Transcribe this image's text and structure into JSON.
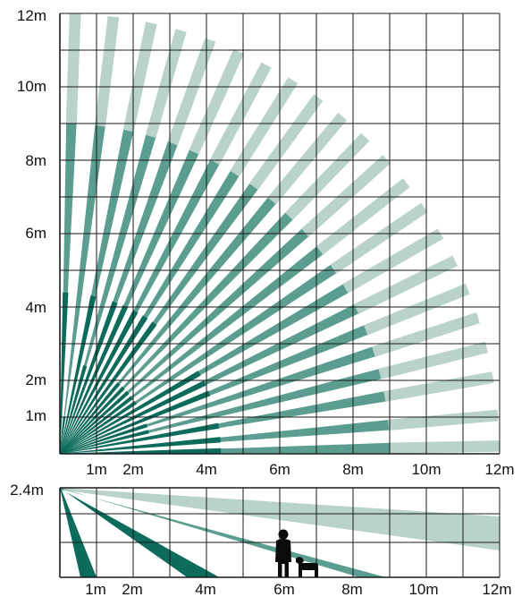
{
  "top_view": {
    "y_tick_labels": [
      "1m",
      "2m",
      "4m",
      "6m",
      "8m",
      "10m",
      "12m"
    ],
    "x_tick_labels": [
      "1m",
      "2m",
      "4m",
      "6m",
      "8m",
      "10m",
      "12m"
    ],
    "grid_step_m": 1,
    "range_m": 12,
    "beams": [
      {
        "angle_deg": 1,
        "near_m": 4.4,
        "mid_m": 9.0,
        "far_m": 12.0
      },
      {
        "angle_deg": 5,
        "near_m": 4.4,
        "mid_m": 9.0,
        "far_m": 12.0
      },
      {
        "angle_deg": 10,
        "near_m": 4.4,
        "mid_m": 9.0,
        "far_m": 12.0
      },
      {
        "angle_deg": 14,
        "near_m": 2.5,
        "mid_m": 9.0,
        "far_m": 12.0
      },
      {
        "angle_deg": 18,
        "near_m": 2.5,
        "mid_m": 9.0,
        "far_m": 12.0
      },
      {
        "angle_deg": 22,
        "near_m": 4.4,
        "mid_m": 9.0,
        "far_m": 12.0
      },
      {
        "angle_deg": 26,
        "near_m": 4.4,
        "mid_m": 9.0,
        "far_m": 12.0
      },
      {
        "angle_deg": 30,
        "near_m": 4.4,
        "mid_m": 9.0,
        "far_m": 12.0
      },
      {
        "angle_deg": 34,
        "near_m": 2.5,
        "mid_m": 9.0,
        "far_m": 12.0
      },
      {
        "angle_deg": 38,
        "near_m": 2.5,
        "mid_m": 9.0,
        "far_m": 12.0
      },
      {
        "angle_deg": 42,
        "near_m": 2.5,
        "mid_m": 9.0,
        "far_m": 12.0
      },
      {
        "angle_deg": 46,
        "near_m": 2.5,
        "mid_m": 9.0,
        "far_m": 12.0
      },
      {
        "angle_deg": 50,
        "near_m": 2.5,
        "mid_m": 9.0,
        "far_m": 12.0
      },
      {
        "angle_deg": 54,
        "near_m": 4.4,
        "mid_m": 9.0,
        "far_m": 12.0
      },
      {
        "angle_deg": 58,
        "near_m": 4.4,
        "mid_m": 9.0,
        "far_m": 12.0
      },
      {
        "angle_deg": 62,
        "near_m": 4.4,
        "mid_m": 9.0,
        "far_m": 12.0
      },
      {
        "angle_deg": 66,
        "near_m": 4.4,
        "mid_m": 9.0,
        "far_m": 12.0
      },
      {
        "angle_deg": 70,
        "near_m": 4.4,
        "mid_m": 9.0,
        "far_m": 12.0
      },
      {
        "angle_deg": 74,
        "near_m": 2.5,
        "mid_m": 9.0,
        "far_m": 12.0
      },
      {
        "angle_deg": 78,
        "near_m": 4.4,
        "mid_m": 9.0,
        "far_m": 12.0
      },
      {
        "angle_deg": 83,
        "near_m": 1.0,
        "mid_m": 9.0,
        "far_m": 12.0
      },
      {
        "angle_deg": 88,
        "near_m": 4.4,
        "mid_m": 9.0,
        "far_m": 12.0
      }
    ]
  },
  "side_view": {
    "height_label": "2.4m",
    "x_tick_labels": [
      "1m",
      "2m",
      "4m",
      "6m",
      "8m",
      "10m",
      "12m"
    ],
    "mount_height_m": 2.4,
    "beams": [
      {
        "tier": "far",
        "end_x_m": 12.0
      },
      {
        "tier": "mid",
        "end_x_m": 8.9
      },
      {
        "tier": "near",
        "end_x_m": 4.4
      },
      {
        "tier": "down",
        "end_x_m": 1.0
      }
    ],
    "figures": [
      "person-icon",
      "dog-icon"
    ]
  },
  "colors": {
    "dark": "#0d6b5c",
    "mid": "#5b9d8e",
    "light": "#b9d2cb",
    "grid": "#1a1a1a",
    "text": "#111111"
  }
}
